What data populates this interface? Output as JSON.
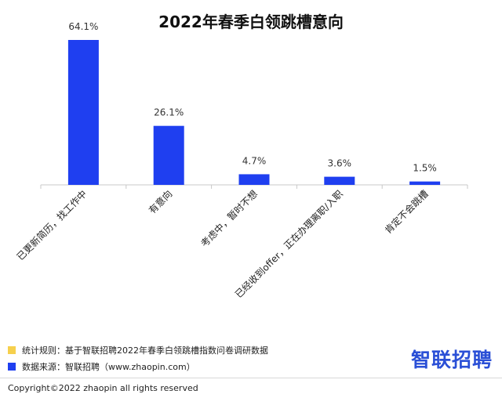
{
  "chart_data": {
    "type": "bar",
    "title": "2022年春季白领跳槽意向",
    "categories": [
      "已更新简历，找工作中",
      "有意向",
      "考虑中，暂时不想",
      "已经收到offer，正在办理离职/入职",
      "肯定不会跳槽"
    ],
    "values": [
      64.1,
      26.1,
      4.7,
      3.6,
      1.5
    ],
    "data_labels": [
      "64.1%",
      "26.1%",
      "4.7%",
      "3.6%",
      "1.5%"
    ],
    "unit": "%",
    "ylim": [
      0,
      64.1
    ],
    "grid": false,
    "legend": "none",
    "bar_color": "#1f3ff0"
  },
  "notes": {
    "rule": "统计规则：基于智联招聘2022年春季白领跳槽指数问卷调研数据",
    "source": "数据来源：智联招聘（www.zhaopin.com）"
  },
  "colors": {
    "rule_swatch": "#f6d04d",
    "source_swatch": "#1f3ff0",
    "brand": "#2a4fd6"
  },
  "brand": "智联招聘",
  "copyright": "Copyright©2022 zhaopin all rights reserved"
}
